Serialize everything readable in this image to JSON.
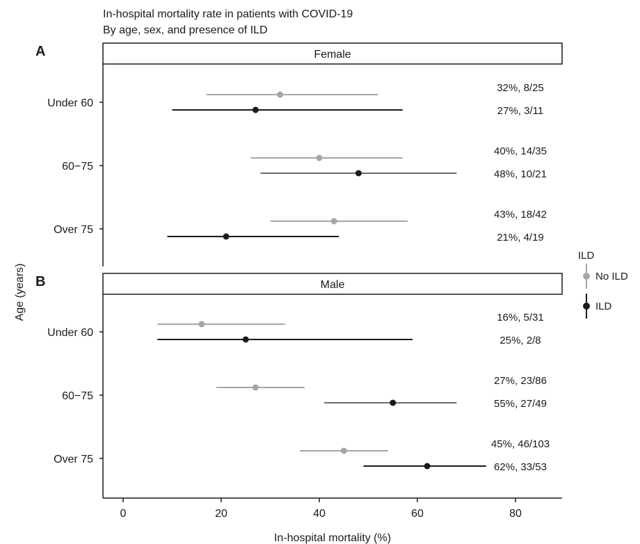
{
  "title": "In-hospital mortality rate in patients with COVID-19",
  "subtitle": "By age, sex, and presence of ILD",
  "colors": {
    "no_ild": "#a6a6a6",
    "ild": "#1a1a1a",
    "ild_bar_60_75": "#6e6e6e"
  },
  "chart_data": {
    "type": "scatter",
    "subtype": "forest-plot",
    "xlabel": "In-hospital mortality (%)",
    "ylabel": "Age (years)",
    "x_ticks": [
      "0",
      "20",
      "40",
      "60",
      "80"
    ],
    "xlim": [
      -4,
      89
    ],
    "categories": [
      "Under 60",
      "60−75",
      "Over 75"
    ],
    "legend": {
      "title": "ILD",
      "position": "right",
      "entries": [
        "No ILD",
        "ILD"
      ]
    },
    "panels": [
      {
        "letter": "A",
        "strip": "Female",
        "rows": [
          {
            "age": "Under 60",
            "series": "No ILD",
            "estimate": 32,
            "lower": 17,
            "upper": 52,
            "label": "32%, 8/25"
          },
          {
            "age": "Under 60",
            "series": "ILD",
            "estimate": 27,
            "lower": 10,
            "upper": 57,
            "label": "27%, 3/11"
          },
          {
            "age": "60−75",
            "series": "No ILD",
            "estimate": 40,
            "lower": 26,
            "upper": 57,
            "label": "40%, 14/35"
          },
          {
            "age": "60−75",
            "series": "ILD",
            "estimate": 48,
            "lower": 28,
            "upper": 68,
            "label": "48%, 10/21"
          },
          {
            "age": "Over 75",
            "series": "No ILD",
            "estimate": 43,
            "lower": 30,
            "upper": 58,
            "label": "43%, 18/42"
          },
          {
            "age": "Over 75",
            "series": "ILD",
            "estimate": 21,
            "lower": 9,
            "upper": 44,
            "label": "21%, 4/19"
          }
        ]
      },
      {
        "letter": "B",
        "strip": "Male",
        "rows": [
          {
            "age": "Under 60",
            "series": "No ILD",
            "estimate": 16,
            "lower": 7,
            "upper": 33,
            "label": "16%, 5/31"
          },
          {
            "age": "Under 60",
            "series": "ILD",
            "estimate": 25,
            "lower": 7,
            "upper": 59,
            "label": "25%, 2/8"
          },
          {
            "age": "60−75",
            "series": "No ILD",
            "estimate": 27,
            "lower": 19,
            "upper": 37,
            "label": "27%, 23/86"
          },
          {
            "age": "60−75",
            "series": "ILD",
            "estimate": 55,
            "lower": 41,
            "upper": 68,
            "label": "55%, 27/49"
          },
          {
            "age": "Over 75",
            "series": "No ILD",
            "estimate": 45,
            "lower": 36,
            "upper": 54,
            "label": "45%, 46/103"
          },
          {
            "age": "Over 75",
            "series": "ILD",
            "estimate": 62,
            "lower": 49,
            "upper": 74,
            "label": "62%, 33/53"
          }
        ]
      }
    ]
  }
}
